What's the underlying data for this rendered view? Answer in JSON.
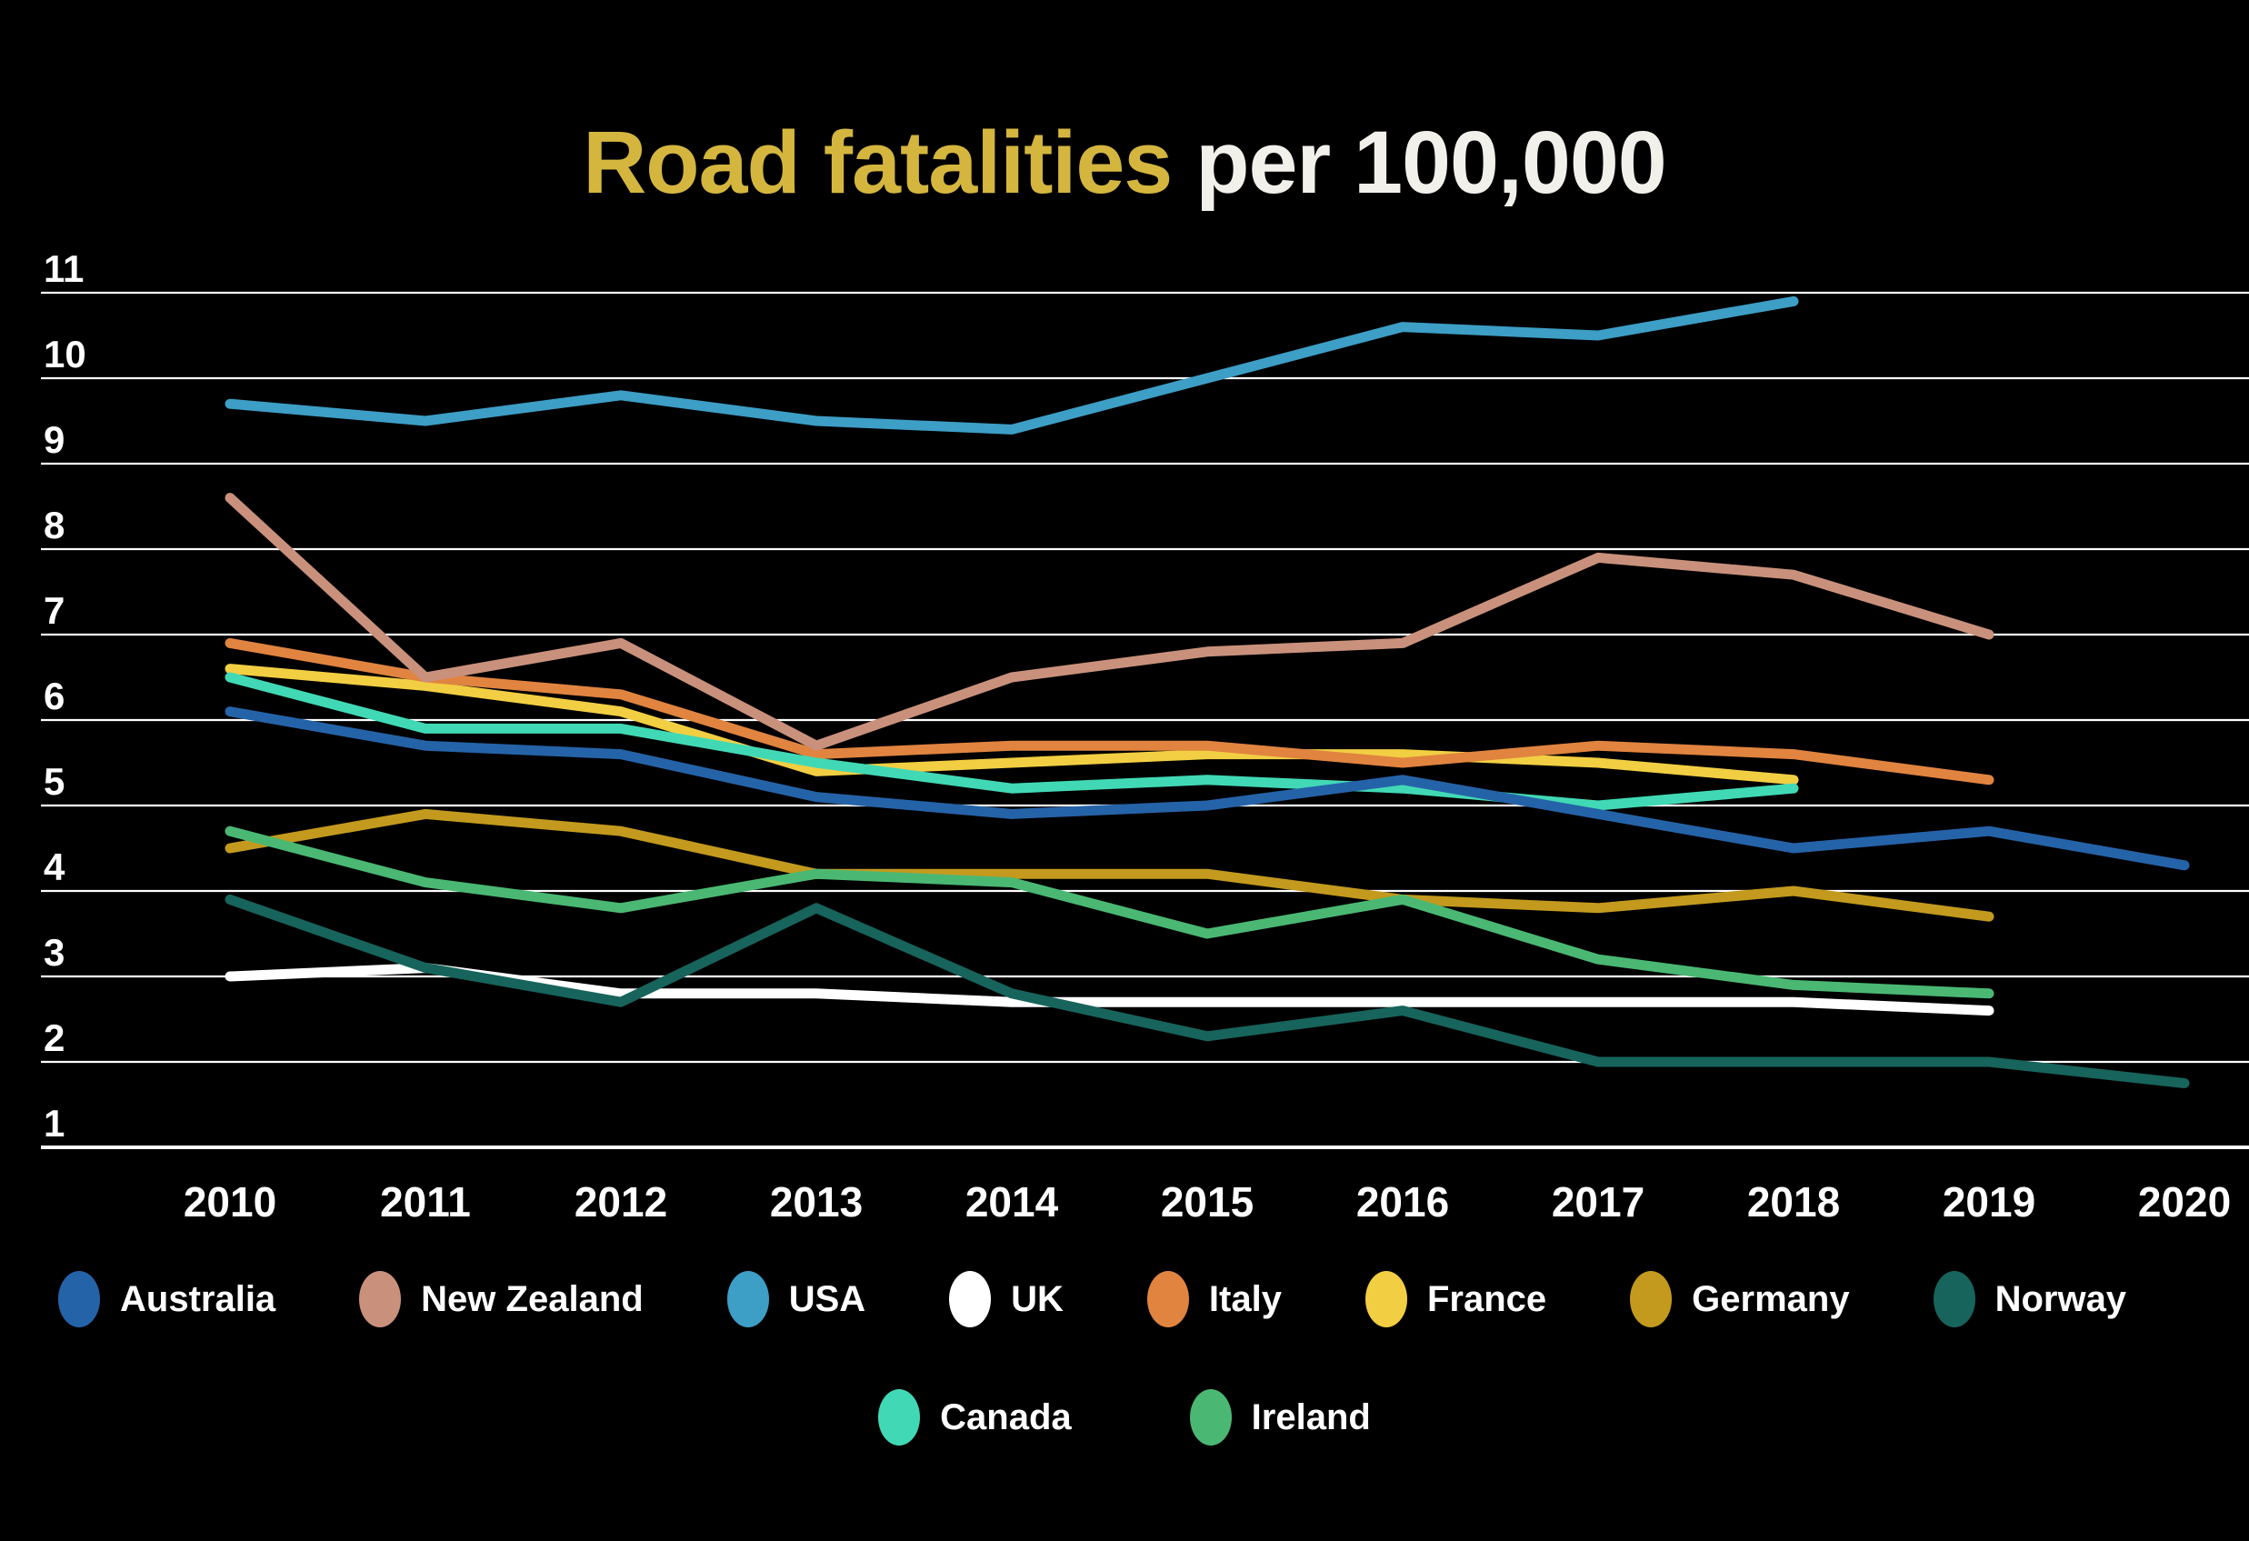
{
  "title": {
    "highlight": "Road fatalities",
    "rest": " per 100,000"
  },
  "chart_data": {
    "type": "line",
    "title": "Road fatalities per 100,000",
    "xlabel": "",
    "ylabel": "",
    "x": [
      2010,
      2011,
      2012,
      2013,
      2014,
      2015,
      2016,
      2017,
      2018,
      2019,
      2020
    ],
    "ylim": [
      1,
      11
    ],
    "y_ticks": [
      1,
      2,
      3,
      4,
      5,
      6,
      7,
      8,
      9,
      10,
      11
    ],
    "grid": true,
    "legend_position": "bottom",
    "background_color": "#000000",
    "gridline_color": "#ffffff",
    "series": [
      {
        "name": "UK",
        "color": "#ffffff",
        "values": [
          3.0,
          3.1,
          2.8,
          2.8,
          2.7,
          2.7,
          2.7,
          2.7,
          2.7,
          2.6,
          null
        ]
      },
      {
        "name": "Norway",
        "color": "#17645c",
        "values": [
          3.9,
          3.1,
          2.7,
          3.8,
          2.8,
          2.3,
          2.6,
          2.0,
          2.0,
          2.0,
          1.75
        ]
      },
      {
        "name": "Germany",
        "color": "#c39a1e",
        "values": [
          4.5,
          4.9,
          4.7,
          4.2,
          4.2,
          4.2,
          3.9,
          3.8,
          4.0,
          3.7,
          null
        ]
      },
      {
        "name": "Ireland",
        "color": "#4ab873",
        "values": [
          4.7,
          4.1,
          3.8,
          4.2,
          4.1,
          3.5,
          3.9,
          3.2,
          2.9,
          2.8,
          null
        ]
      },
      {
        "name": "France",
        "color": "#f2ce43",
        "values": [
          6.6,
          6.4,
          6.1,
          5.4,
          5.5,
          5.6,
          5.6,
          5.5,
          5.3,
          null,
          null
        ]
      },
      {
        "name": "Italy",
        "color": "#e08440",
        "values": [
          6.9,
          6.5,
          6.3,
          5.6,
          5.7,
          5.7,
          5.5,
          5.7,
          5.6,
          5.3,
          null
        ]
      },
      {
        "name": "Canada",
        "color": "#41d9b5",
        "values": [
          6.5,
          5.9,
          5.9,
          5.5,
          5.2,
          5.3,
          5.2,
          5.0,
          5.2,
          null,
          null
        ]
      },
      {
        "name": "Australia",
        "color": "#2563a8",
        "values": [
          6.1,
          5.7,
          5.6,
          5.1,
          4.9,
          5.0,
          5.3,
          4.9,
          4.5,
          4.7,
          4.3
        ]
      },
      {
        "name": "New Zealand",
        "color": "#c9917c",
        "values": [
          8.6,
          6.5,
          6.9,
          5.7,
          6.5,
          6.8,
          6.9,
          7.9,
          7.7,
          7.0,
          null
        ]
      },
      {
        "name": "USA",
        "color": "#3d9ec6",
        "values": [
          9.7,
          9.5,
          9.8,
          9.5,
          9.4,
          10.0,
          10.6,
          10.5,
          10.9,
          null,
          null
        ]
      }
    ],
    "legend_rows": [
      [
        "Australia",
        "New Zealand",
        "USA",
        "UK",
        "Italy",
        "France",
        "Germany",
        "Norway"
      ],
      [
        "Canada",
        "Ireland"
      ]
    ]
  }
}
